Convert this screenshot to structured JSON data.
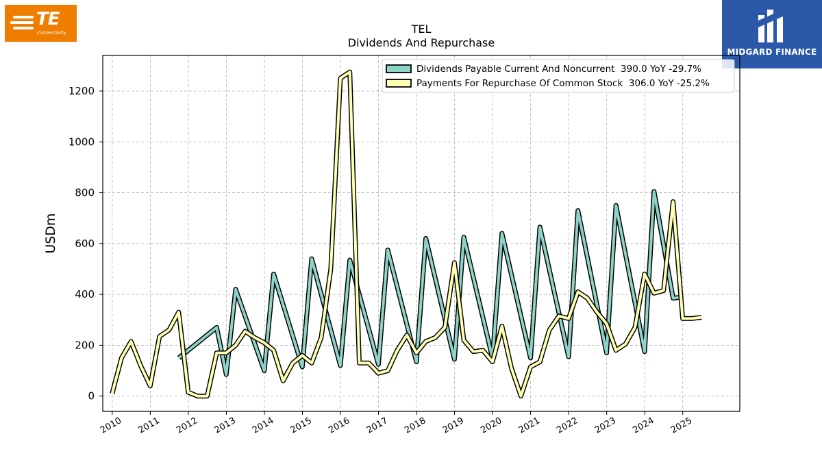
{
  "logos": {
    "left": {
      "text": "TE",
      "subtext": "connectivity",
      "color": "#ee7d00"
    },
    "right": {
      "text": "MIDGARD FINANCE",
      "color": "#2b58a8"
    }
  },
  "chart_data": {
    "type": "line",
    "title": "TEL",
    "subtitle": "Dividends And Repurchase",
    "ylabel": "USDm",
    "xlabel": "",
    "ylim": [
      -60,
      1340
    ],
    "xlim": [
      2009.75,
      2026.5
    ],
    "yticks": [
      0,
      200,
      400,
      600,
      800,
      1000,
      1200
    ],
    "xticks": [
      "2010",
      "2011",
      "2012",
      "2013",
      "2014",
      "2015",
      "2016",
      "2017",
      "2018",
      "2019",
      "2020",
      "2021",
      "2022",
      "2023",
      "2024",
      "2025"
    ],
    "grid": true,
    "legend_position": "top-right",
    "series": [
      {
        "name": "Dividends Payable Current And Noncurrent",
        "legend_label": "Dividends Payable Current And Noncurrent  390.0 YoY -29.7%",
        "color": "#8dd3c7",
        "points": [
          [
            "2011-10-01",
            150
          ],
          [
            "2012-09-30",
            270
          ],
          [
            "2012-12-31",
            85
          ],
          [
            "2013-03-31",
            420
          ],
          [
            "2013-12-31",
            100
          ],
          [
            "2014-03-31",
            480
          ],
          [
            "2014-12-31",
            115
          ],
          [
            "2015-03-31",
            540
          ],
          [
            "2015-12-31",
            120
          ],
          [
            "2016-03-31",
            535
          ],
          [
            "2016-12-31",
            125
          ],
          [
            "2017-03-31",
            575
          ],
          [
            "2017-12-31",
            135
          ],
          [
            "2018-03-31",
            620
          ],
          [
            "2018-12-31",
            145
          ],
          [
            "2019-03-31",
            625
          ],
          [
            "2019-12-31",
            150
          ],
          [
            "2020-03-31",
            640
          ],
          [
            "2020-12-31",
            150
          ],
          [
            "2021-03-31",
            665
          ],
          [
            "2021-12-31",
            155
          ],
          [
            "2022-03-31",
            730
          ],
          [
            "2022-12-31",
            170
          ],
          [
            "2023-03-31",
            750
          ],
          [
            "2023-12-31",
            175
          ],
          [
            "2024-03-31",
            805
          ],
          [
            "2024-09-30",
            385
          ],
          [
            "2024-12-31",
            390
          ]
        ]
      },
      {
        "name": "Payments For Repurchase Of Common Stock",
        "legend_label": "Payments For Repurchase Of Common Stock  306.0 YoY -25.2%",
        "color": "#ffffb3",
        "points": [
          [
            "2009-12-31",
            10
          ],
          [
            "2010-03-31",
            150
          ],
          [
            "2010-06-30",
            215
          ],
          [
            "2010-09-30",
            120
          ],
          [
            "2010-12-31",
            40
          ],
          [
            "2011-03-31",
            235
          ],
          [
            "2011-06-30",
            260
          ],
          [
            "2011-09-30",
            330
          ],
          [
            "2011-12-31",
            15
          ],
          [
            "2012-03-31",
            0
          ],
          [
            "2012-06-30",
            0
          ],
          [
            "2012-09-30",
            170
          ],
          [
            "2012-12-31",
            170
          ],
          [
            "2013-03-31",
            200
          ],
          [
            "2013-06-30",
            255
          ],
          [
            "2013-09-30",
            230
          ],
          [
            "2013-12-31",
            210
          ],
          [
            "2014-03-31",
            180
          ],
          [
            "2014-06-30",
            60
          ],
          [
            "2014-09-30",
            130
          ],
          [
            "2014-12-31",
            160
          ],
          [
            "2015-03-31",
            130
          ],
          [
            "2015-06-30",
            230
          ],
          [
            "2015-09-30",
            500
          ],
          [
            "2015-12-31",
            1250
          ],
          [
            "2016-03-31",
            1275
          ],
          [
            "2016-06-30",
            130
          ],
          [
            "2016-09-30",
            130
          ],
          [
            "2016-12-31",
            90
          ],
          [
            "2017-03-31",
            100
          ],
          [
            "2017-06-30",
            180
          ],
          [
            "2017-09-30",
            240
          ],
          [
            "2017-12-31",
            170
          ],
          [
            "2018-03-31",
            215
          ],
          [
            "2018-06-30",
            230
          ],
          [
            "2018-09-30",
            270
          ],
          [
            "2018-12-31",
            525
          ],
          [
            "2019-03-31",
            220
          ],
          [
            "2019-06-30",
            175
          ],
          [
            "2019-09-30",
            180
          ],
          [
            "2019-12-31",
            135
          ],
          [
            "2020-03-31",
            275
          ],
          [
            "2020-06-30",
            110
          ],
          [
            "2020-09-30",
            0
          ],
          [
            "2020-12-31",
            115
          ],
          [
            "2021-03-31",
            135
          ],
          [
            "2021-06-30",
            260
          ],
          [
            "2021-09-30",
            315
          ],
          [
            "2021-12-31",
            305
          ],
          [
            "2022-03-31",
            410
          ],
          [
            "2022-06-30",
            385
          ],
          [
            "2022-09-30",
            330
          ],
          [
            "2022-12-31",
            285
          ],
          [
            "2023-03-31",
            180
          ],
          [
            "2023-06-30",
            205
          ],
          [
            "2023-09-30",
            270
          ],
          [
            "2023-12-31",
            480
          ],
          [
            "2024-03-31",
            405
          ],
          [
            "2024-06-30",
            415
          ],
          [
            "2024-09-30",
            765
          ],
          [
            "2024-12-31",
            305
          ],
          [
            "2025-03-31",
            305
          ],
          [
            "2025-06-30",
            310
          ]
        ]
      }
    ]
  }
}
